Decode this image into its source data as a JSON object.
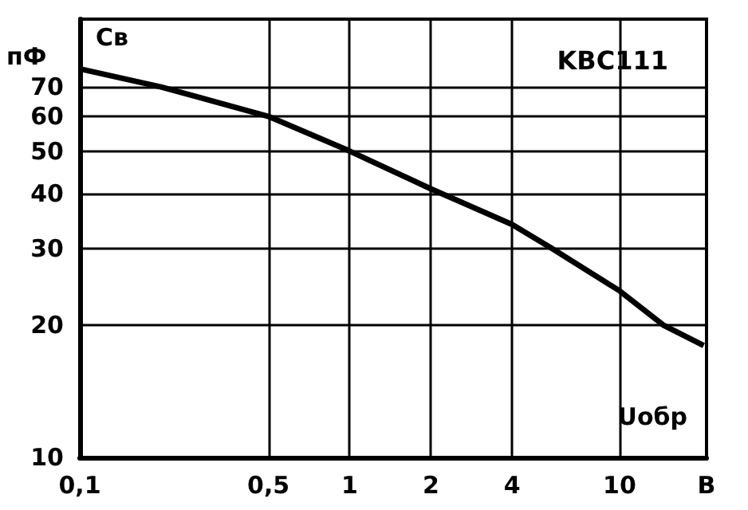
{
  "chart_data": {
    "type": "line",
    "title": "KBC111",
    "ylabel": "пФ",
    "annotations": [
      "Св",
      "Uобр"
    ],
    "x": [
      0.1,
      0.2,
      0.5,
      1,
      2,
      4,
      5.6,
      10,
      14.6,
      20.5
    ],
    "series": [
      {
        "color": "#000000",
        "values": [
          77,
          70,
          60,
          50,
          41,
          34,
          30,
          24,
          20,
          18
        ]
      }
    ],
    "log": "xy",
    "xlim": [
      0.1,
      21
    ],
    "ylim": [
      10,
      100
    ],
    "xticks": [
      {
        "value": 0.1,
        "label": "0,1"
      },
      {
        "value": 0.5,
        "label": "0,5"
      },
      1,
      2,
      4,
      10,
      {
        "value": 21,
        "label": "В"
      }
    ],
    "yticks": [
      10,
      20,
      30,
      40,
      50,
      60,
      70
    ],
    "grid": true,
    "marker": "none",
    "line_style": "solid"
  }
}
